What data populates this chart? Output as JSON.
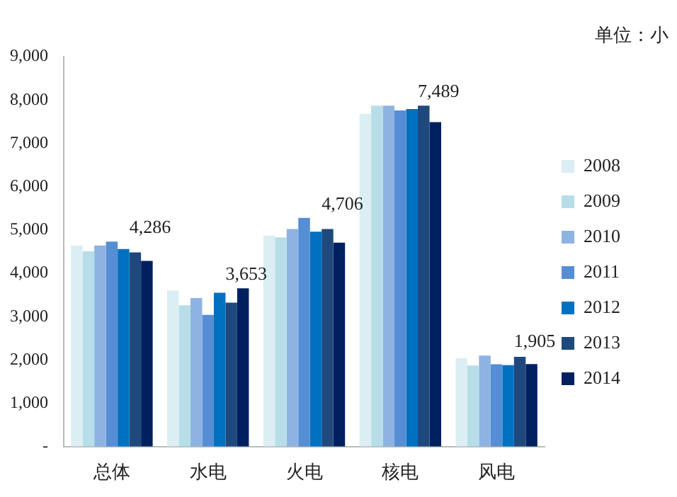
{
  "chart_data": {
    "type": "bar",
    "categories": [
      "总体",
      "水电",
      "火电",
      "核电",
      "风电"
    ],
    "series": [
      {
        "name": "2008",
        "color": "#daeef3",
        "values": [
          4640,
          3600,
          4870,
          7680,
          2040
        ]
      },
      {
        "name": "2009",
        "color": "#b7dee8",
        "values": [
          4510,
          3260,
          4830,
          7870,
          1870
        ]
      },
      {
        "name": "2010",
        "color": "#8db3e2",
        "values": [
          4640,
          3430,
          5020,
          7870,
          2100
        ]
      },
      {
        "name": "2011",
        "color": "#558ed5",
        "values": [
          4730,
          3040,
          5280,
          7760,
          1900
        ]
      },
      {
        "name": "2012",
        "color": "#0070c0",
        "values": [
          4560,
          3550,
          4960,
          7790,
          1880
        ]
      },
      {
        "name": "2013",
        "color": "#1f497d",
        "values": [
          4480,
          3320,
          5020,
          7870,
          2070
        ]
      },
      {
        "name": "2014",
        "color": "#002060",
        "values": [
          4286,
          3653,
          4706,
          7489,
          1905
        ],
        "value_labels": [
          "4,286",
          "3,653",
          "4,706",
          "7,489",
          "1,905"
        ]
      }
    ],
    "ylim": [
      0,
      9000
    ],
    "yticks": [
      {
        "value": 0,
        "label": "-"
      },
      {
        "value": 1000,
        "label": "1,000"
      },
      {
        "value": 2000,
        "label": "2,000"
      },
      {
        "value": 3000,
        "label": "3,000"
      },
      {
        "value": 4000,
        "label": "4,000"
      },
      {
        "value": 5000,
        "label": "5,000"
      },
      {
        "value": 6000,
        "label": "6,000"
      },
      {
        "value": 7000,
        "label": "7,000"
      },
      {
        "value": 8000,
        "label": "8,000"
      },
      {
        "value": 9000,
        "label": "9,000"
      }
    ],
    "grid": false,
    "legend": "right",
    "annotations": [
      "单位：小"
    ]
  }
}
